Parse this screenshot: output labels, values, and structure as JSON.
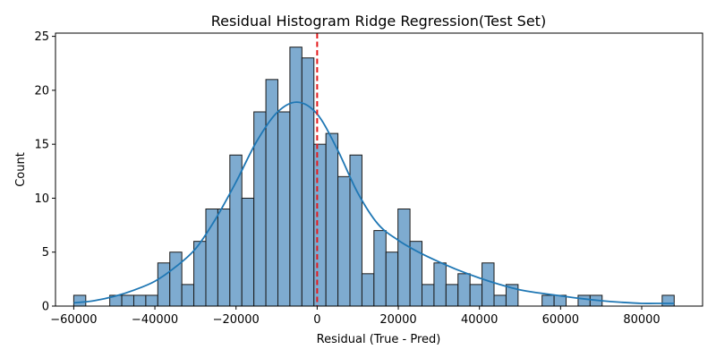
{
  "chart_data": {
    "type": "bar",
    "title": "Residual Histogram Ridge Regression(Test Set)",
    "xlabel": "Residual (True - Pred)",
    "ylabel": "Count",
    "xlim": [
      -64500,
      95000
    ],
    "ylim": [
      0,
      25.3
    ],
    "x_ticks": [
      -60000,
      -40000,
      -20000,
      0,
      20000,
      40000,
      60000,
      80000
    ],
    "x_tick_labels": [
      "−60000",
      "−40000",
      "−20000",
      "0",
      "20000",
      "40000",
      "60000",
      "80000"
    ],
    "y_ticks": [
      0,
      5,
      10,
      15,
      20,
      25
    ],
    "y_tick_labels": [
      "0",
      "5",
      "10",
      "15",
      "20",
      "25"
    ],
    "bin_start": -60000,
    "bin_width": 2960,
    "counts": [
      1,
      0,
      0,
      1,
      1,
      1,
      1,
      4,
      5,
      2,
      6,
      9,
      9,
      14,
      10,
      18,
      21,
      18,
      24,
      23,
      15,
      16,
      12,
      14,
      3,
      7,
      5,
      9,
      6,
      2,
      4,
      2,
      3,
      2,
      4,
      1,
      2,
      0,
      0,
      1,
      1,
      0,
      1,
      1,
      0,
      0,
      0,
      0,
      0,
      1
    ],
    "kde_curve": {
      "x": [
        -60000,
        -55000,
        -50000,
        -45000,
        -40000,
        -35000,
        -30000,
        -25000,
        -20000,
        -15000,
        -10000,
        -5000,
        0,
        5000,
        10000,
        15000,
        20000,
        25000,
        30000,
        35000,
        40000,
        45000,
        50000,
        55000,
        60000,
        65000,
        70000,
        75000,
        80000,
        85000,
        88000
      ],
      "y": [
        0.3,
        0.5,
        0.9,
        1.5,
        2.3,
        3.6,
        5.3,
        8.1,
        11.5,
        15.2,
        17.9,
        18.9,
        17.8,
        14.5,
        10.5,
        7.6,
        6.1,
        5.0,
        4.1,
        3.3,
        2.6,
        2.0,
        1.5,
        1.2,
        0.95,
        0.7,
        0.5,
        0.35,
        0.25,
        0.25,
        0.25
      ]
    },
    "reference_line": {
      "x": 0,
      "style": "dashed",
      "color": "#e41a1c"
    },
    "colors": {
      "bar_fill": "#7eabd0",
      "bar_edge": "#1a1a1a",
      "kde_line": "#1f77b4"
    },
    "grid": false,
    "legend": "none"
  }
}
